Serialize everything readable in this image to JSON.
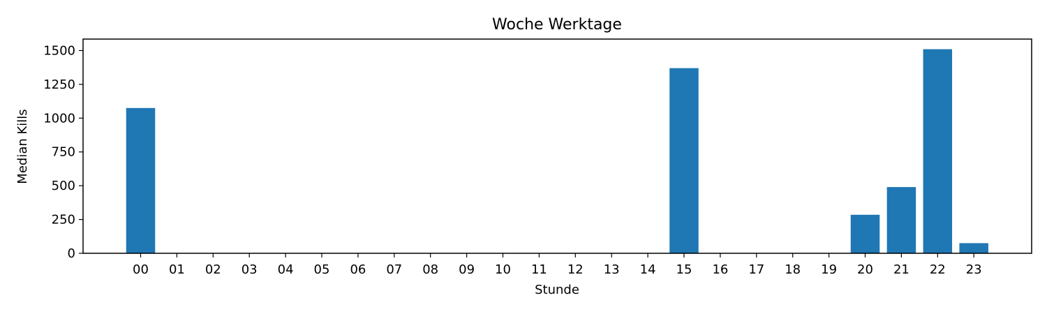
{
  "chart_data": {
    "type": "bar",
    "title": "Woche Werktage",
    "xlabel": "Stunde",
    "ylabel": "Median Kills",
    "categories": [
      "00",
      "01",
      "02",
      "03",
      "04",
      "05",
      "06",
      "07",
      "08",
      "09",
      "10",
      "11",
      "12",
      "13",
      "14",
      "15",
      "16",
      "17",
      "18",
      "19",
      "20",
      "21",
      "22",
      "23"
    ],
    "values": [
      1075,
      0,
      0,
      0,
      0,
      0,
      0,
      0,
      0,
      0,
      0,
      0,
      0,
      0,
      0,
      1370,
      0,
      0,
      0,
      0,
      285,
      490,
      1510,
      75
    ],
    "ylim": [
      0,
      1585
    ],
    "yticks": [
      0,
      250,
      500,
      750,
      1000,
      1250,
      1500
    ],
    "bar_color": "#1f77b4",
    "grid": false,
    "legend": "none"
  }
}
